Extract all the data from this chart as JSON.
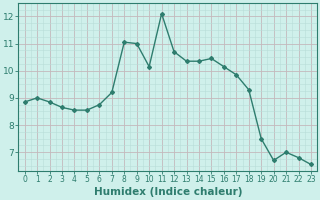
{
  "x": [
    0,
    1,
    2,
    3,
    4,
    5,
    6,
    7,
    8,
    9,
    10,
    11,
    12,
    13,
    14,
    15,
    16,
    17,
    18,
    19,
    20,
    21,
    22,
    23
  ],
  "y": [
    8.85,
    9.0,
    8.85,
    8.65,
    8.55,
    8.55,
    8.75,
    9.2,
    11.05,
    11.0,
    10.15,
    12.1,
    10.7,
    10.35,
    10.35,
    10.45,
    10.15,
    9.85,
    9.3,
    7.5,
    6.7,
    7.0,
    6.8,
    6.55
  ],
  "line_color": "#2e7d6e",
  "marker": "D",
  "marker_size": 2.0,
  "linewidth": 1.0,
  "xlabel": "Humidex (Indice chaleur)",
  "xlabel_fontsize": 7.5,
  "bg_color": "#cff0eb",
  "grid_color_major": "#c4b8bc",
  "grid_color_minor": "#b8ddd8",
  "tick_color": "#2e7d6e",
  "axis_color": "#2e7d6e",
  "xlim": [
    -0.5,
    23.5
  ],
  "ylim": [
    6.3,
    12.5
  ],
  "yticks": [
    7,
    8,
    9,
    10,
    11,
    12
  ],
  "xticks": [
    0,
    1,
    2,
    3,
    4,
    5,
    6,
    7,
    8,
    9,
    10,
    11,
    12,
    13,
    14,
    15,
    16,
    17,
    18,
    19,
    20,
    21,
    22,
    23
  ]
}
